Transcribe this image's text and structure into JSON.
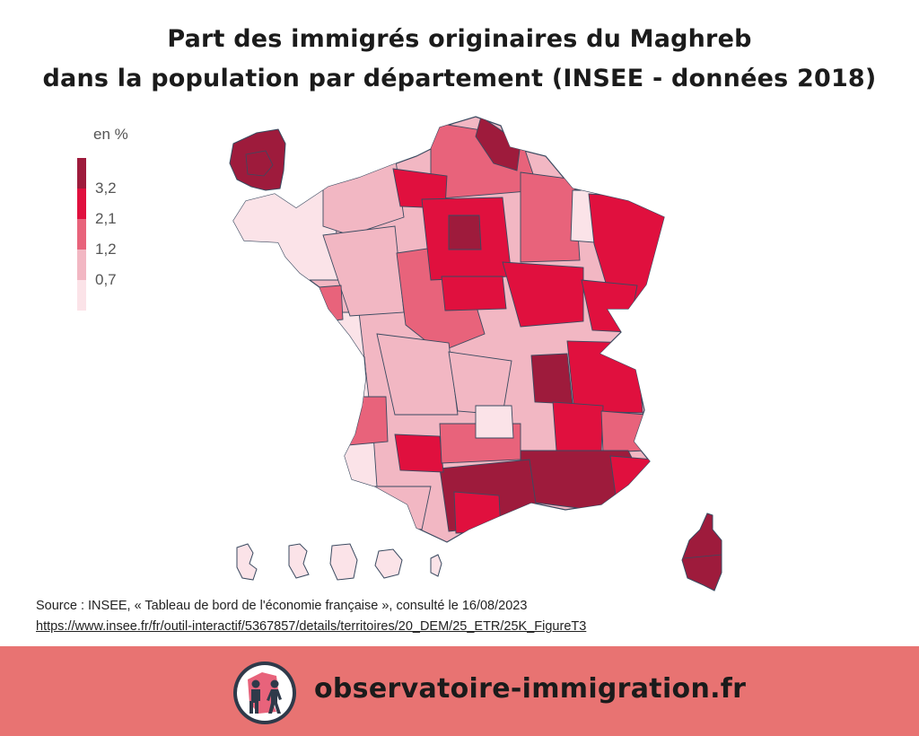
{
  "title": {
    "line1": "Part des immigrés originaires du Maghreb",
    "line2": "dans la population par département (INSEE - données 2018)"
  },
  "legend": {
    "unit": "en %",
    "ticks": [
      "3,2",
      "2,1",
      "1,2",
      "0,7"
    ],
    "colors": [
      "#9e1b3c",
      "#e0103e",
      "#e8637b",
      "#f2b7c3",
      "#fbe3e8"
    ]
  },
  "source": {
    "text": "Source : INSEE, « Tableau de bord de l'économie française », consulté le 16/08/2023",
    "url": "https://www.insee.fr/fr/outil-interactif/5367857/details/territoires/20_DEM/25_ETR/25K_FigureT3"
  },
  "footer": {
    "brand": "observatoire-immigration.fr",
    "background": "#e87372",
    "icon": "people-walking-map-icon"
  }
}
